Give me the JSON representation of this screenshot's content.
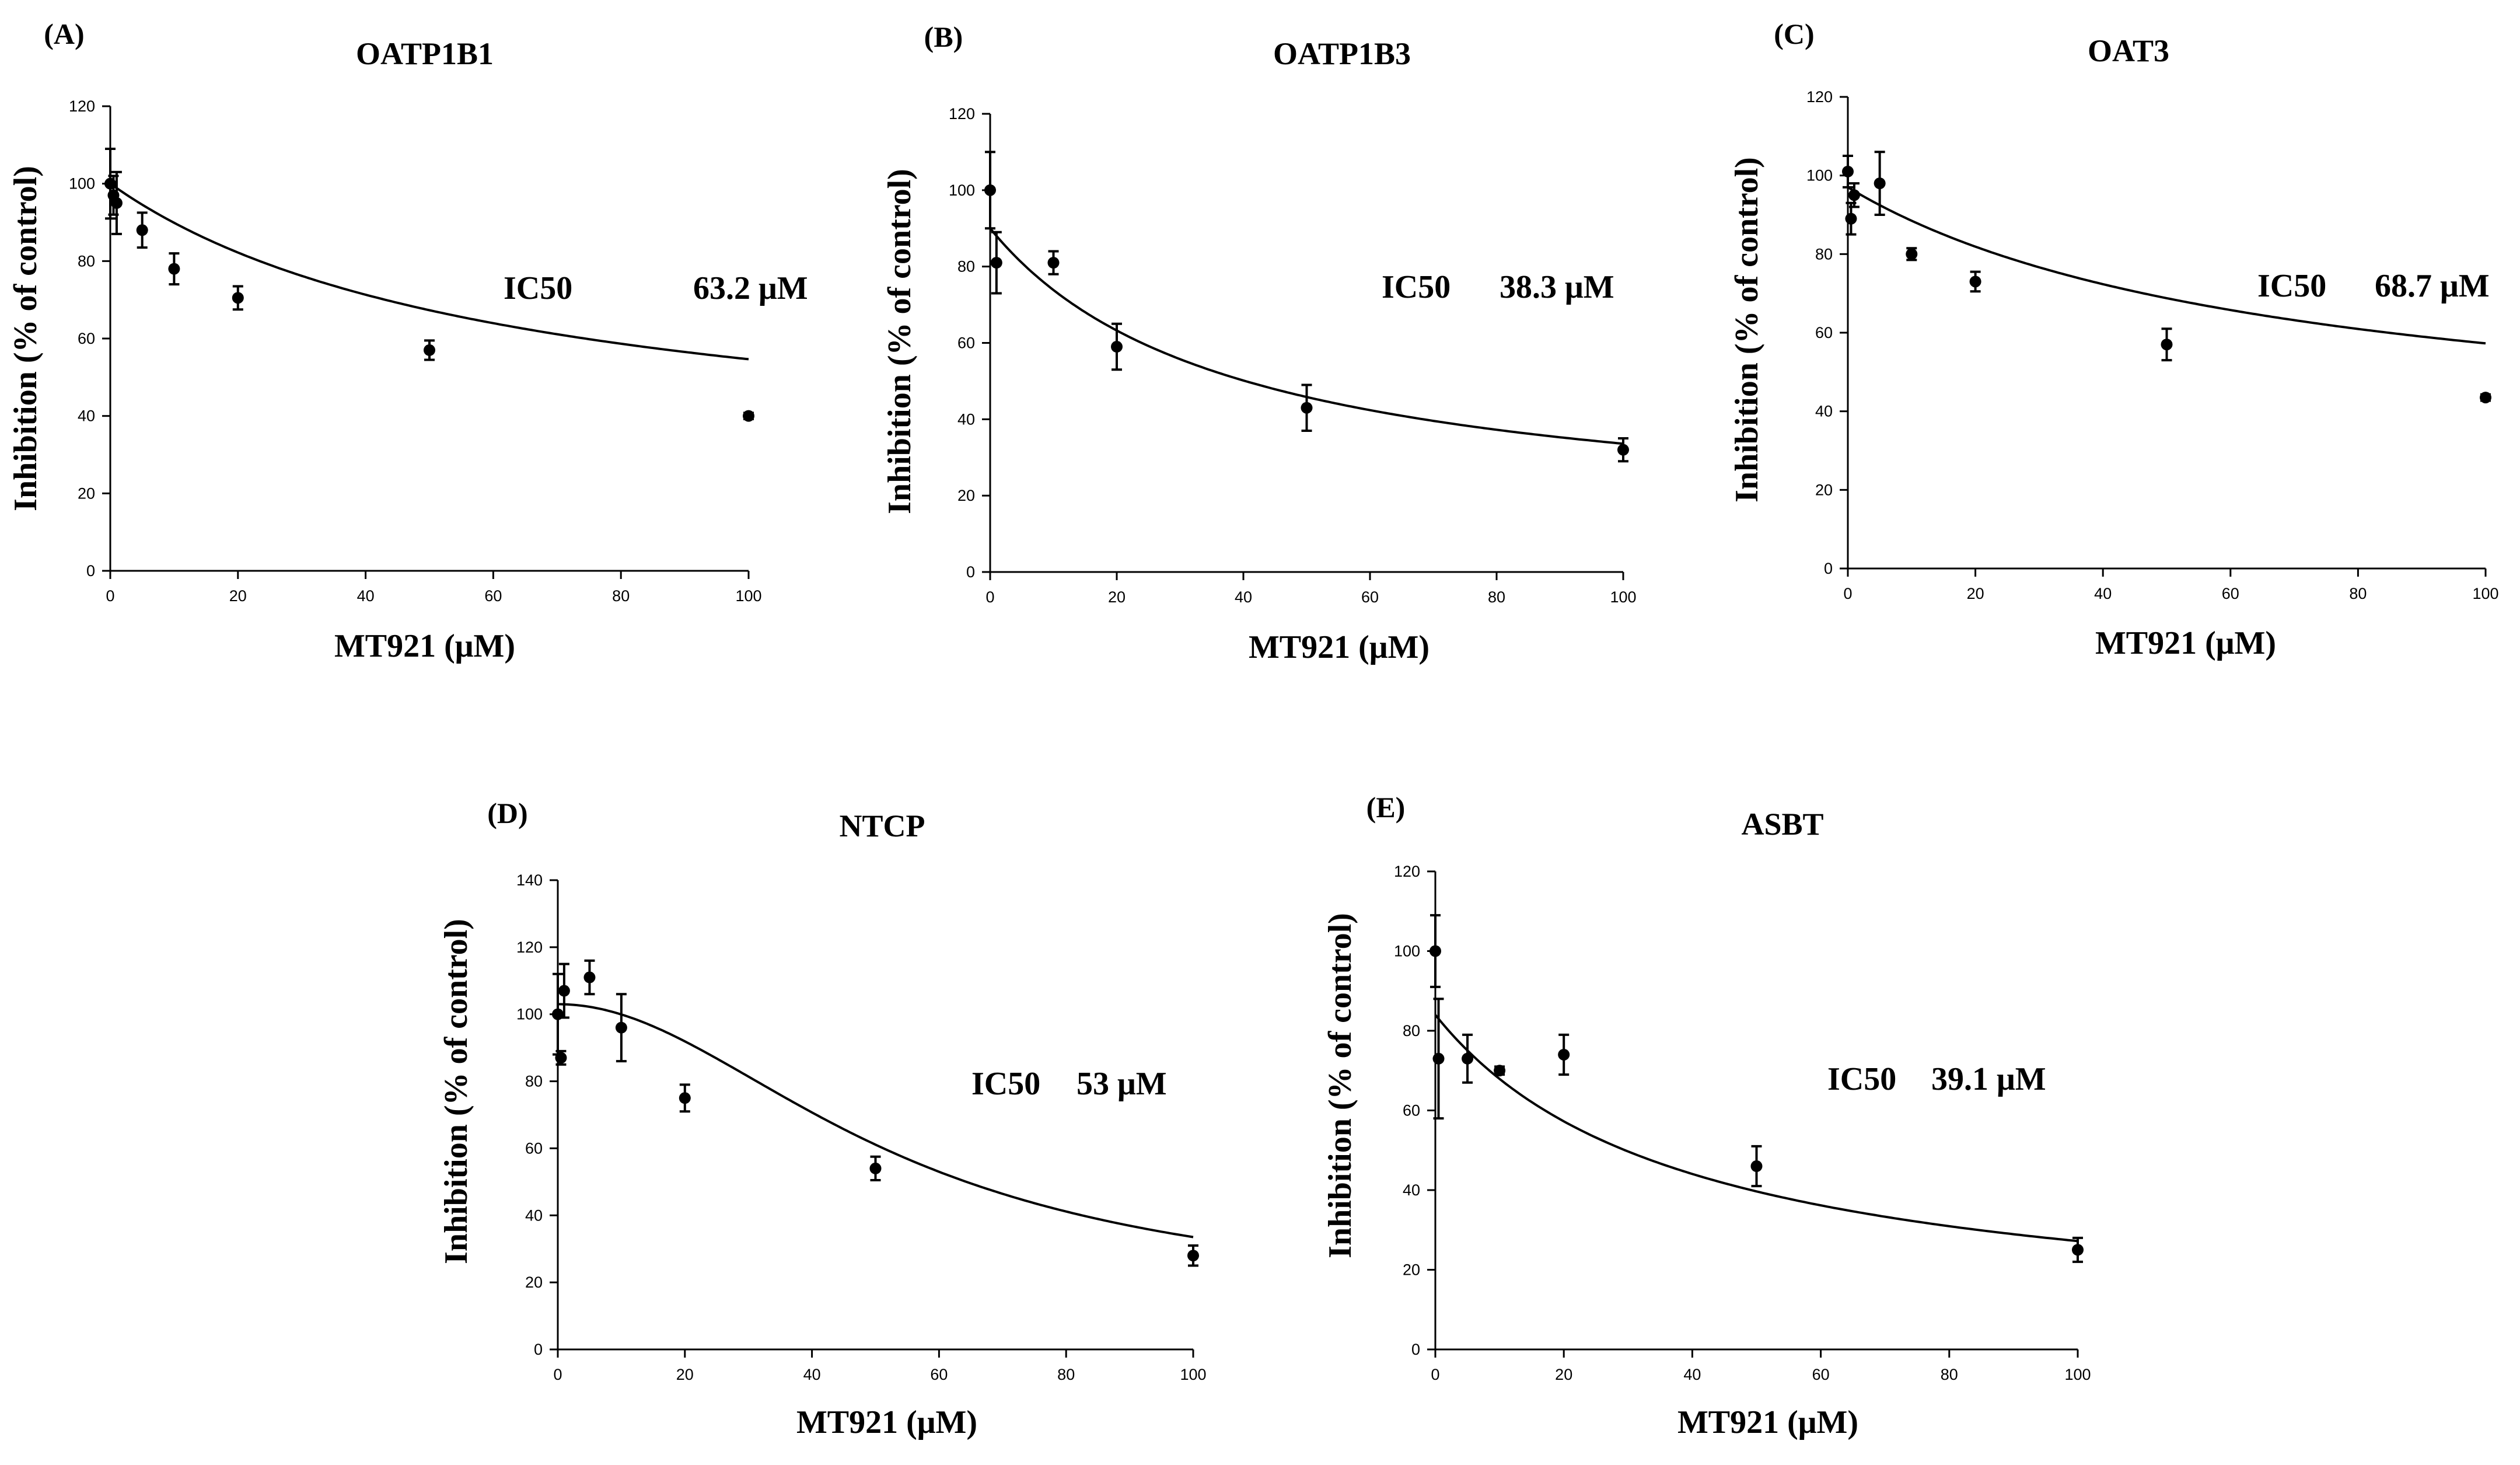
{
  "chart_data": [
    {
      "type": "scatter",
      "panel": "(A)",
      "title": "OATP1B1",
      "xlabel": "MT921 (μM)",
      "ylabel": "Inhibition (% of control)",
      "xlim": [
        0,
        100
      ],
      "ylim": [
        0,
        120
      ],
      "xticks": [
        0,
        20,
        40,
        60,
        80,
        100
      ],
      "yticks": [
        0,
        20,
        40,
        60,
        80,
        100,
        120
      ],
      "ic50_label": "IC50",
      "ic50_value": "63.2 μM",
      "x": [
        0,
        0.5,
        1,
        5,
        10,
        20,
        50,
        100
      ],
      "y": [
        100,
        97,
        95,
        88,
        78,
        70.5,
        57,
        40
      ],
      "error": [
        9,
        5,
        8,
        4.5,
        4,
        3,
        2.5,
        0.8
      ],
      "fit": {
        "top": 100,
        "bottom": 26,
        "ic50": 63.2,
        "hill": 1
      }
    },
    {
      "type": "scatter",
      "panel": "(B)",
      "title": "OATP1B3",
      "xlabel": "MT921 (μM)",
      "ylabel": "Inhibition (% of control)",
      "xlim": [
        0,
        100
      ],
      "ylim": [
        0,
        120
      ],
      "xticks": [
        0,
        20,
        40,
        60,
        80,
        100
      ],
      "yticks": [
        0,
        20,
        40,
        60,
        80,
        100,
        120
      ],
      "ic50_label": "IC50",
      "ic50_value": "38.3 μM",
      "x": [
        0,
        1,
        10,
        20,
        50,
        100
      ],
      "y": [
        100,
        81,
        81,
        59,
        43,
        32
      ],
      "error": [
        10,
        8,
        3,
        6,
        6,
        3
      ],
      "fit": {
        "top": 90,
        "bottom": 12,
        "ic50": 38.3,
        "hill": 1
      }
    },
    {
      "type": "scatter",
      "panel": "(C)",
      "title": "OAT3",
      "xlabel": "MT921 (μM)",
      "ylabel": "Inhibition (% of control)",
      "xlim": [
        0,
        100
      ],
      "ylim": [
        0,
        120
      ],
      "xticks": [
        0,
        20,
        40,
        60,
        80,
        100
      ],
      "yticks": [
        0,
        20,
        40,
        60,
        80,
        100,
        120
      ],
      "ic50_label": "IC50",
      "ic50_value": "68.7 μM",
      "x": [
        0,
        0.5,
        1,
        5,
        10,
        20,
        50,
        100
      ],
      "y": [
        101,
        89,
        95,
        98,
        80,
        73,
        57,
        43.5
      ],
      "error": [
        4,
        4,
        3,
        8,
        1.5,
        2.5,
        4,
        0.8
      ],
      "fit": {
        "top": 97,
        "bottom": 30,
        "ic50": 68.7,
        "hill": 1
      }
    },
    {
      "type": "scatter",
      "panel": "(D)",
      "title": "NTCP",
      "xlabel": "MT921 (μM)",
      "ylabel": "Inhibition (% of control)",
      "xlim": [
        0,
        100
      ],
      "ylim": [
        0,
        140
      ],
      "xticks": [
        0,
        20,
        40,
        60,
        80,
        100
      ],
      "yticks": [
        0,
        20,
        40,
        60,
        80,
        100,
        120,
        140
      ],
      "ic50_label": "IC50",
      "ic50_value": "53 μM",
      "x": [
        0,
        0.5,
        1,
        5,
        10,
        20,
        50,
        100
      ],
      "y": [
        100,
        87,
        107,
        111,
        96,
        75,
        54,
        28
      ],
      "error": [
        12,
        2,
        8,
        5,
        10,
        4,
        3.5,
        3
      ],
      "fit": {
        "top": 103,
        "bottom": 14,
        "ic50": 53,
        "hill": 2
      }
    },
    {
      "type": "scatter",
      "panel": "(E)",
      "title": "ASBT",
      "xlabel": "MT921 (μM)",
      "ylabel": "Inhibition (% of control)",
      "xlim": [
        0,
        100
      ],
      "ylim": [
        0,
        120
      ],
      "xticks": [
        0,
        20,
        40,
        60,
        80,
        100
      ],
      "yticks": [
        0,
        20,
        40,
        60,
        80,
        100,
        120
      ],
      "ic50_label": "IC50",
      "ic50_value": "39.1 μM",
      "x": [
        0,
        0.5,
        5,
        10,
        20,
        50,
        100
      ],
      "y": [
        100,
        73,
        73,
        70,
        74,
        46,
        25
      ],
      "error": [
        9,
        15,
        6,
        1,
        5,
        5,
        3
      ],
      "fit": {
        "top": 84,
        "bottom": 5,
        "ic50": 39.1,
        "hill": 1
      }
    }
  ]
}
